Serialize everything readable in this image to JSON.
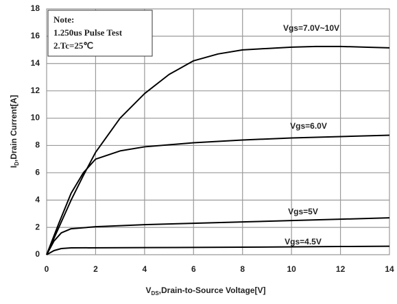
{
  "chart_data": {
    "type": "line",
    "note": [
      "Note:",
      "1.250us Pulse Test",
      "2.Tc=25℃"
    ],
    "xlabel": [
      "V",
      "DS",
      ",Drain-to-Source Voltage[V]"
    ],
    "ylabel": [
      "I",
      "D",
      ",Drain Current[A]"
    ],
    "xlim": [
      0,
      14
    ],
    "xticks": [
      0,
      2,
      4,
      6,
      8,
      10,
      12,
      14
    ],
    "ylim": [
      0,
      18
    ],
    "yticks": [
      0,
      2,
      4,
      6,
      8,
      10,
      12,
      14,
      16,
      18
    ],
    "grid": true,
    "series": [
      {
        "name": "Vgs=7.0V~10V",
        "color": "#000000",
        "x": [
          0,
          0.5,
          1,
          1.5,
          2,
          3,
          4,
          5,
          6,
          7,
          8,
          9,
          10,
          11,
          12,
          13,
          14
        ],
        "values": [
          0,
          2,
          4,
          5.8,
          7.5,
          10,
          11.8,
          13.2,
          14.2,
          14.7,
          15,
          15.1,
          15.2,
          15.25,
          15.25,
          15.2,
          15.15
        ]
      },
      {
        "name": "Vgs=6.0V",
        "color": "#000000",
        "x": [
          0,
          0.5,
          1,
          1.5,
          2,
          3,
          4,
          6,
          8,
          10,
          12,
          14
        ],
        "values": [
          0,
          2.3,
          4.5,
          6,
          7,
          7.6,
          7.9,
          8.2,
          8.4,
          8.55,
          8.65,
          8.75
        ]
      },
      {
        "name": "Vgs=5V",
        "color": "#000000",
        "x": [
          0,
          0.3,
          0.6,
          1,
          2,
          4,
          6,
          8,
          10,
          12,
          14
        ],
        "values": [
          0,
          1,
          1.6,
          1.9,
          2.05,
          2.2,
          2.3,
          2.4,
          2.5,
          2.6,
          2.7
        ]
      },
      {
        "name": "Vgs=4.5V",
        "color": "#000000",
        "x": [
          0,
          0.3,
          0.6,
          1,
          4,
          8,
          12,
          14
        ],
        "values": [
          0,
          0.3,
          0.45,
          0.5,
          0.52,
          0.55,
          0.6,
          0.62
        ]
      }
    ]
  }
}
